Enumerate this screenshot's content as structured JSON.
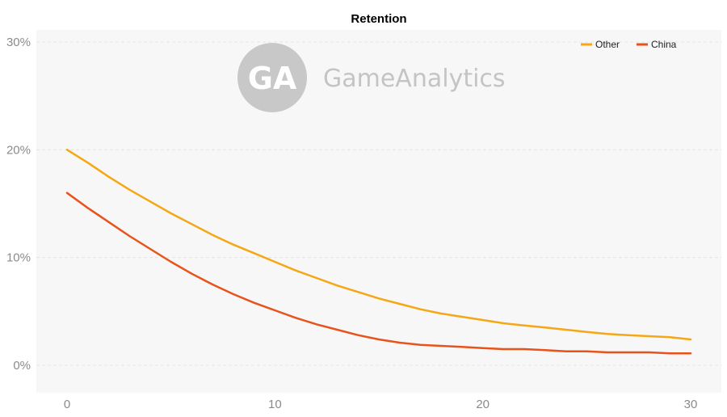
{
  "watermark": {
    "logo_text": "GA",
    "brand": "GameAnalytics"
  },
  "colors": {
    "plot_bg": "#f7f7f7",
    "grid": "#e4e4e4",
    "axis_text": "#8a8a8a",
    "watermark": "#c8c8c8"
  },
  "chart_data": {
    "type": "line",
    "title": "Retention",
    "xlabel": "",
    "ylabel": "",
    "xlim": [
      0,
      30
    ],
    "ylim": [
      0,
      30
    ],
    "x_ticks": [
      0,
      10,
      20,
      30
    ],
    "y_ticks": [
      0,
      10,
      20,
      30
    ],
    "x_tick_labels": [
      "0",
      "10",
      "20",
      "30"
    ],
    "y_tick_labels": [
      "0%",
      "10%",
      "20%",
      "30%"
    ],
    "grid": true,
    "legend_position": "top-right",
    "series": [
      {
        "name": "Other",
        "color": "#f5a714",
        "x": [
          0,
          1,
          2,
          3,
          4,
          5,
          6,
          7,
          8,
          9,
          10,
          11,
          12,
          13,
          14,
          15,
          16,
          17,
          18,
          19,
          20,
          21,
          22,
          23,
          24,
          25,
          26,
          27,
          28,
          29,
          30
        ],
        "values": [
          20.0,
          18.8,
          17.5,
          16.3,
          15.2,
          14.1,
          13.1,
          12.1,
          11.2,
          10.4,
          9.6,
          8.8,
          8.1,
          7.4,
          6.8,
          6.2,
          5.7,
          5.2,
          4.8,
          4.5,
          4.2,
          3.9,
          3.7,
          3.5,
          3.3,
          3.1,
          2.9,
          2.8,
          2.7,
          2.6,
          2.4
        ]
      },
      {
        "name": "China",
        "color": "#e8531b",
        "x": [
          0,
          1,
          2,
          3,
          4,
          5,
          6,
          7,
          8,
          9,
          10,
          11,
          12,
          13,
          14,
          15,
          16,
          17,
          18,
          19,
          20,
          21,
          22,
          23,
          24,
          25,
          26,
          27,
          28,
          29,
          30
        ],
        "values": [
          16.0,
          14.6,
          13.3,
          12.0,
          10.8,
          9.6,
          8.5,
          7.5,
          6.6,
          5.8,
          5.1,
          4.4,
          3.8,
          3.3,
          2.8,
          2.4,
          2.1,
          1.9,
          1.8,
          1.7,
          1.6,
          1.5,
          1.5,
          1.4,
          1.3,
          1.3,
          1.2,
          1.2,
          1.2,
          1.1,
          1.1
        ]
      }
    ]
  }
}
